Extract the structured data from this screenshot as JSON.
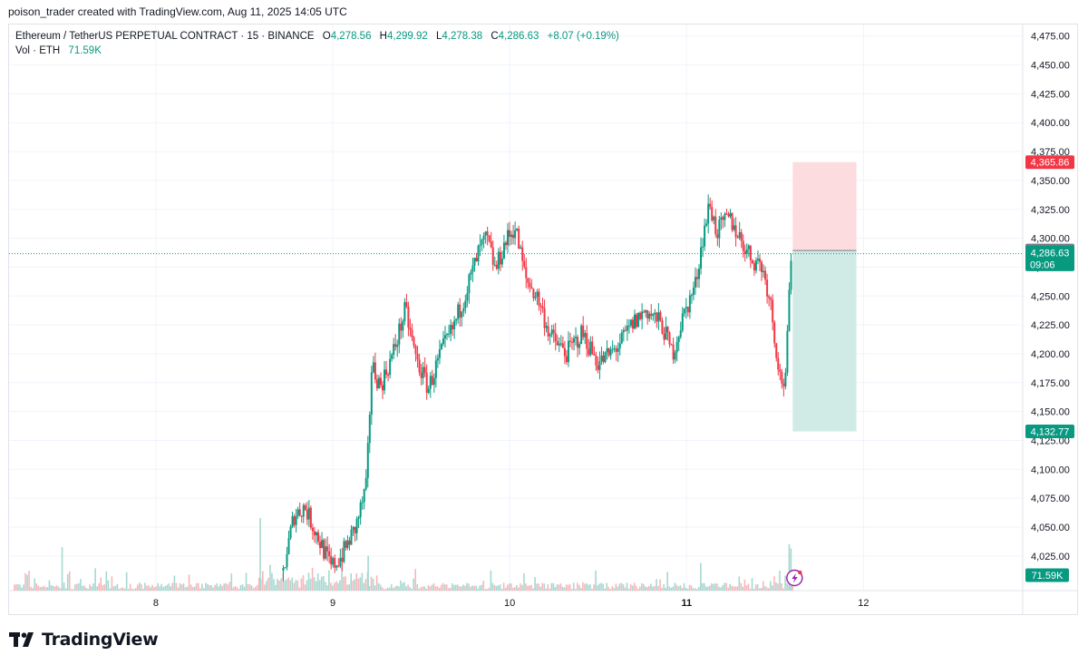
{
  "attribution": "poison_trader created with TradingView.com, Aug 11, 2025 14:05 UTC",
  "legend": {
    "symbol": "Ethereum / TetherUS PERPETUAL CONTRACT · 15 · BINANCE",
    "open_label": "O",
    "open": "4,278.56",
    "high_label": "H",
    "high": "4,299.92",
    "low_label": "L",
    "low": "4,278.38",
    "close_label": "C",
    "close": "4,286.63",
    "change": "+8.07 (+0.19%)",
    "vol_label": "Vol · ETH",
    "vol": "71.59K"
  },
  "footer": {
    "brand": "TradingView",
    "logo_icon": "tradingview-logo-icon"
  },
  "colors": {
    "up": "#089981",
    "down": "#f23645",
    "up_volume": "#a6d8d0",
    "down_volume": "#f7b6ba",
    "stop_zone": "#fcdcdf",
    "target_zone": "#d0ebe6",
    "grid": "#f0f3fa",
    "axis_text": "#131722",
    "current_price": "#089981"
  },
  "chart_data": {
    "type": "candlestick",
    "symbol": "ETHUSDT.P",
    "interval": "15",
    "exchange": "BINANCE",
    "y_axis": {
      "min": 3995,
      "max": 4485,
      "ticks": [
        "4,475.00",
        "4,450.00",
        "4,425.00",
        "4,400.00",
        "4,375.00",
        "4,350.00",
        "4,325.00",
        "4,300.00",
        "4,275.00",
        "4,250.00",
        "4,225.00",
        "4,200.00",
        "4,175.00",
        "4,150.00",
        "4,125.00",
        "4,100.00",
        "4,075.00",
        "4,050.00",
        "4,025.00"
      ],
      "tick_values": [
        4475,
        4450,
        4425,
        4400,
        4375,
        4350,
        4325,
        4300,
        4275,
        4250,
        4225,
        4200,
        4175,
        4150,
        4125,
        4100,
        4075,
        4050,
        4025
      ]
    },
    "x_axis": {
      "min": 7.17,
      "max": 12.9,
      "ticks": [
        {
          "label": "8",
          "value": 8,
          "bold": false
        },
        {
          "label": "9",
          "value": 9,
          "bold": false
        },
        {
          "label": "10",
          "value": 10,
          "bold": false
        },
        {
          "label": "11",
          "value": 11,
          "bold": true
        },
        {
          "label": "12",
          "value": 12,
          "bold": false
        }
      ]
    },
    "grid": true,
    "price_path": [
      [
        8.72,
        4012
      ],
      [
        8.78,
        4060
      ],
      [
        8.84,
        4068
      ],
      [
        8.92,
        4040
      ],
      [
        8.99,
        4015
      ],
      [
        9.05,
        4025
      ],
      [
        9.13,
        4050
      ],
      [
        9.19,
        4085
      ],
      [
        9.22,
        4190
      ],
      [
        9.27,
        4172
      ],
      [
        9.34,
        4200
      ],
      [
        9.41,
        4238
      ],
      [
        9.47,
        4196
      ],
      [
        9.54,
        4170
      ],
      [
        9.61,
        4200
      ],
      [
        9.68,
        4222
      ],
      [
        9.77,
        4262
      ],
      [
        9.83,
        4290
      ],
      [
        9.87,
        4300
      ],
      [
        9.92,
        4272
      ],
      [
        9.97,
        4295
      ],
      [
        10.03,
        4310
      ],
      [
        10.09,
        4265
      ],
      [
        10.16,
        4248
      ],
      [
        10.23,
        4215
      ],
      [
        10.32,
        4200
      ],
      [
        10.41,
        4218
      ],
      [
        10.5,
        4192
      ],
      [
        10.57,
        4200
      ],
      [
        10.63,
        4210
      ],
      [
        10.69,
        4225
      ],
      [
        10.77,
        4238
      ],
      [
        10.86,
        4225
      ],
      [
        10.92,
        4200
      ],
      [
        10.98,
        4232
      ],
      [
        11.05,
        4260
      ],
      [
        11.09,
        4300
      ],
      [
        11.13,
        4330
      ],
      [
        11.17,
        4305
      ],
      [
        11.24,
        4318
      ],
      [
        11.31,
        4298
      ],
      [
        11.37,
        4282
      ],
      [
        11.42,
        4278
      ],
      [
        11.47,
        4250
      ],
      [
        11.5,
        4212
      ],
      [
        11.53,
        4178
      ],
      [
        11.56,
        4175
      ],
      [
        11.58,
        4255
      ],
      [
        11.6,
        4287
      ]
    ],
    "volume_spikes": [
      {
        "x": 7.47,
        "vol": 60
      },
      {
        "x": 8.59,
        "vol": 100
      },
      {
        "x": 9.2,
        "vol": 48
      },
      {
        "x": 11.08,
        "vol": 38
      },
      {
        "x": 11.58,
        "vol": 64
      },
      {
        "x": 11.59,
        "vol": 58
      }
    ],
    "volume_max": 100,
    "current_price": 4286.63,
    "current_price_label": "4,286.63",
    "countdown": "09:06",
    "volume_label": "71.59K",
    "position": {
      "x_start": 11.6,
      "x_end": 11.96,
      "entry": 4289.37,
      "entry_label": "4,289.37",
      "stop": 4365.86,
      "stop_label": "4,365.86",
      "target": 4132.77,
      "target_label": "4,132.77"
    }
  }
}
